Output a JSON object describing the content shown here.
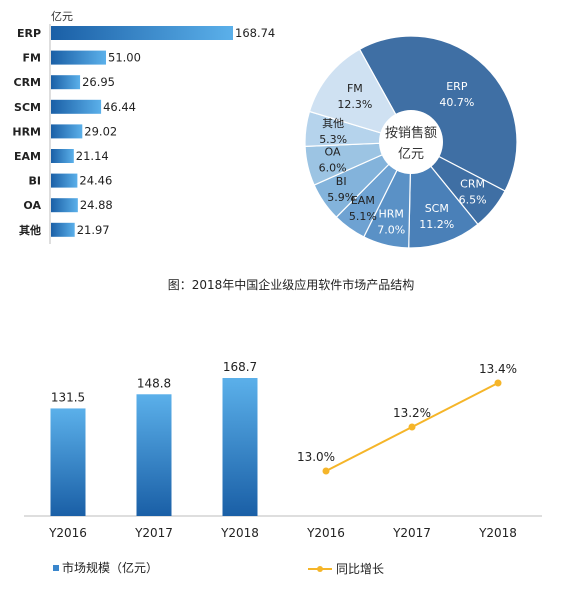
{
  "figure_caption": "图：2018年中国企业级应用软件市场产品结构",
  "colors": {
    "bar_light": "#5bb0ea",
    "bar_dark": "#1a5fa6",
    "pie_colors": [
      "#3f6fa4",
      "#3f6fa4",
      "#4a80b8",
      "#5a91c6",
      "#6ea2d2",
      "#83b3db",
      "#9cc4e3",
      "#b5d3ec",
      "#cfe1f2"
    ],
    "line": "#f5b529",
    "axis": "#bdbdbd"
  },
  "chart_data": [
    {
      "type": "bar",
      "orientation": "horizontal",
      "unit_label": "亿元",
      "categories": [
        "ERP",
        "FM",
        "CRM",
        "SCM",
        "HRM",
        "EAM",
        "BI",
        "OA",
        "其他"
      ],
      "values": [
        168.74,
        51.0,
        26.95,
        46.44,
        29.02,
        21.14,
        24.46,
        24.88,
        21.97
      ],
      "value_labels": [
        "168.74",
        "51.00",
        "26.95",
        "46.44",
        "29.02",
        "21.14",
        "24.46",
        "24.88",
        "21.97"
      ]
    },
    {
      "type": "pie",
      "center_label": [
        "按销售额",
        "亿元"
      ],
      "slices": [
        {
          "name": "ERP",
          "label": "40.7%",
          "value": 40.7
        },
        {
          "name": "CRM",
          "label": "6.5%",
          "value": 6.5
        },
        {
          "name": "SCM",
          "label": "11.2%",
          "value": 11.2
        },
        {
          "name": "HRM",
          "label": "7.0%",
          "value": 7.0
        },
        {
          "name": "EAM",
          "label": "5.1%",
          "value": 5.1
        },
        {
          "name": "BI",
          "label": "5.9%",
          "value": 5.9
        },
        {
          "name": "OA",
          "label": "6.0%",
          "value": 6.0
        },
        {
          "name": "其他",
          "label": "5.3%",
          "value": 5.3
        },
        {
          "name": "FM",
          "label": "12.3%",
          "value": 12.3
        }
      ]
    },
    {
      "type": "bar",
      "categories": [
        "Y2016",
        "Y2017",
        "Y2018"
      ],
      "series": [
        {
          "name": "市场规模（亿元）",
          "values": [
            131.5,
            148.8,
            168.7
          ]
        }
      ],
      "value_labels": [
        "131.5",
        "148.8",
        "168.7"
      ],
      "legend": "bottom"
    },
    {
      "type": "line",
      "categories": [
        "Y2016",
        "Y2017",
        "Y2018"
      ],
      "series": [
        {
          "name": "同比增长",
          "values": [
            13.0,
            13.2,
            13.4
          ]
        }
      ],
      "value_labels": [
        "13.0%",
        "13.2%",
        "13.4%"
      ],
      "legend": "bottom"
    }
  ]
}
